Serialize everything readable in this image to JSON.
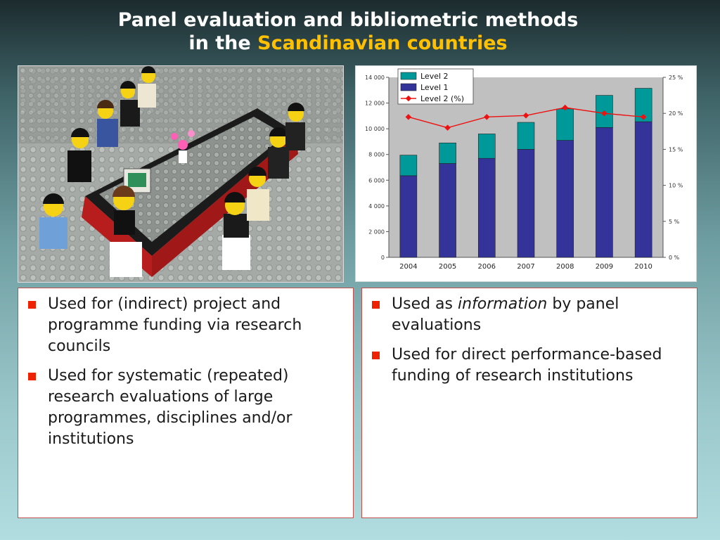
{
  "slide": {
    "title_line1": "Panel evaluation and bibliometric methods",
    "title_line2_prefix": "in the",
    "title_line2_accent": "Scandinavian countries",
    "accent_color": "#ffc000"
  },
  "chart_data": {
    "type": "bar",
    "stacked": true,
    "categories": [
      "2004",
      "2005",
      "2006",
      "2007",
      "2008",
      "2009",
      "2010"
    ],
    "series": [
      {
        "name": "Level 1",
        "kind": "bar",
        "color": "#333399",
        "values": [
          6350,
          7300,
          7700,
          8400,
          9100,
          10100,
          10550
        ]
      },
      {
        "name": "Level 2",
        "kind": "bar",
        "color": "#009999",
        "values": [
          1600,
          1600,
          1900,
          2100,
          2450,
          2500,
          2600
        ]
      },
      {
        "name": "Level 2 (%)",
        "kind": "line",
        "axis": "right",
        "color": "#ee1111",
        "values": [
          19.5,
          18.0,
          19.5,
          19.7,
          20.8,
          20.0,
          19.5
        ]
      }
    ],
    "legend": [
      "Level 2",
      "Level 1",
      "Level 2 (%)"
    ],
    "legend_position": "top-left",
    "ylim": [
      0,
      14000
    ],
    "y_ticks": [
      "0",
      "2 000",
      "4 000",
      "6 000",
      "8 000",
      "10 000",
      "12 000",
      "14 000"
    ],
    "y2lim": [
      0,
      25
    ],
    "y2_ticks": [
      "0 %",
      "5 %",
      "10 %",
      "15 %",
      "20 %",
      "25 %"
    ],
    "plot_background": "#c0c0c0",
    "grid": false
  },
  "left_panel": {
    "bullets": [
      {
        "text": "Used for (indirect) project and programme funding via research councils"
      },
      {
        "text": "Used for systematic (repeated) research evaluations of large programmes, disciplines and/or institutions"
      }
    ]
  },
  "right_panel": {
    "bullets": [
      {
        "before": "Used as ",
        "emph": "information",
        "after": " by panel evaluations"
      },
      {
        "text": "Used for direct performance-based funding of research institutions"
      }
    ]
  }
}
